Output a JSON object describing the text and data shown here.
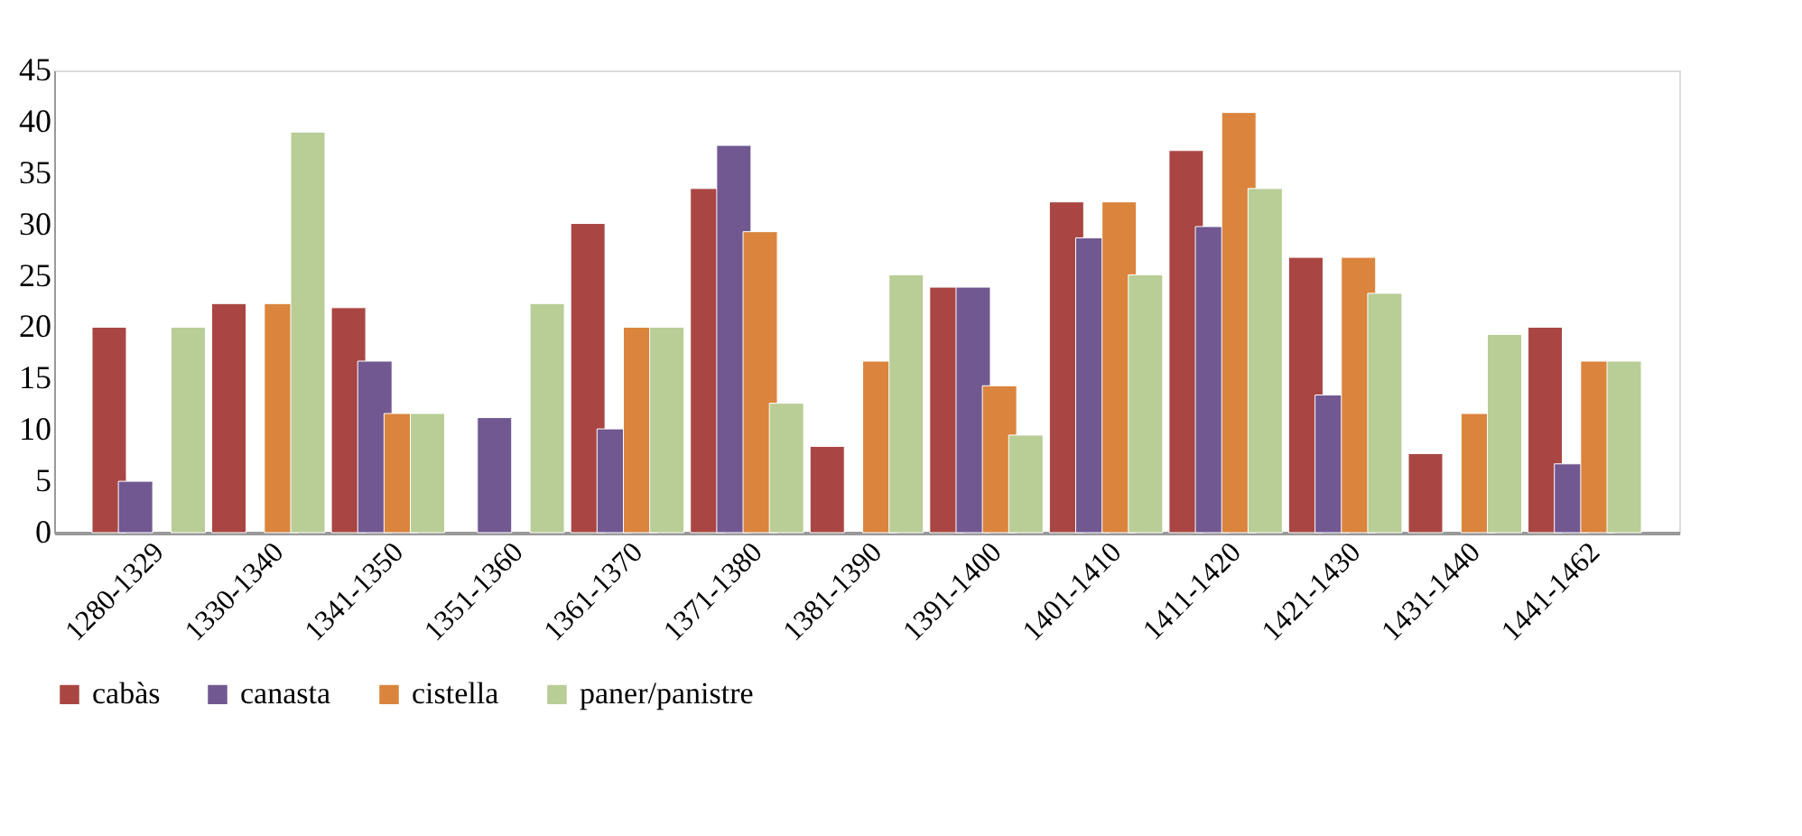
{
  "chart_data": {
    "type": "bar",
    "categories": [
      "1280-1329",
      "1330-1340",
      "1341-1350",
      "1351-1360",
      "1361-1370",
      "1371-1380",
      "1381-1390",
      "1391-1400",
      "1401-1410",
      "1411-1420",
      "1421-1430",
      "1431-1440",
      "1441-1462"
    ],
    "series": [
      {
        "name": "cabàs",
        "color": "#a94643",
        "values": [
          20,
          22.3,
          21.9,
          null,
          30.1,
          33.5,
          8.4,
          23.9,
          32.2,
          37.2,
          26.8,
          7.7,
          20
        ]
      },
      {
        "name": "canasta",
        "color": "#715891",
        "values": [
          5,
          null,
          16.7,
          11.2,
          10.1,
          37.7,
          null,
          23.9,
          28.7,
          29.8,
          13.4,
          null,
          6.7
        ]
      },
      {
        "name": "cistella",
        "color": "#db843d",
        "values": [
          null,
          22.3,
          11.6,
          null,
          20,
          29.3,
          16.7,
          14.3,
          32.2,
          40.9,
          26.8,
          11.6,
          16.7
        ]
      },
      {
        "name": "paner/panistre",
        "color": "#b9cd96",
        "values": [
          20,
          39,
          11.6,
          22.3,
          20,
          12.6,
          25.1,
          9.5,
          25.1,
          33.5,
          23.3,
          19.3,
          16.7
        ]
      }
    ],
    "ylim": [
      0,
      45
    ],
    "yticks": [
      0,
      5,
      10,
      15,
      20,
      25,
      30,
      35,
      40,
      45
    ],
    "grid": false,
    "legend": "bottom"
  }
}
